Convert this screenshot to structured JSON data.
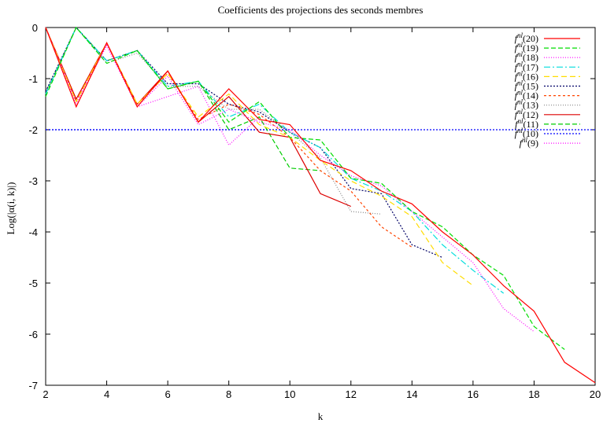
{
  "chart_data": {
    "type": "line",
    "title": "Coefficients des projections des seconds membres",
    "xlabel": "k",
    "ylabel": "Log(|α(i, k)|)",
    "xlim": [
      2,
      20
    ],
    "ylim": [
      -7,
      0
    ],
    "xticks": [
      2,
      4,
      6,
      8,
      10,
      12,
      14,
      16,
      18,
      20
    ],
    "yticks": [
      0,
      -1,
      -2,
      -3,
      -4,
      -5,
      -6,
      -7
    ],
    "grid": false,
    "legend_position": "top-right",
    "series": [
      {
        "name": "f^nl(20)",
        "color": "#ff0000",
        "dash": "solid",
        "x": [
          2,
          3,
          4,
          5,
          6,
          7,
          8,
          9,
          10,
          11,
          12,
          13,
          14,
          15,
          16,
          17,
          18,
          19,
          20
        ],
        "y": [
          0,
          -1.55,
          -0.3,
          -1.55,
          -0.85,
          -1.85,
          -1.2,
          -1.8,
          -1.9,
          -2.6,
          -2.8,
          -3.2,
          -3.45,
          -4.0,
          -4.45,
          -5.05,
          -5.55,
          -6.55,
          -6.95
        ]
      },
      {
        "name": "f^nl(19)",
        "color": "#00dd00",
        "dash": "6,3",
        "x": [
          2,
          3,
          4,
          5,
          6,
          7,
          8,
          9,
          10,
          11,
          12,
          13,
          14,
          15,
          16,
          17,
          18,
          19
        ],
        "y": [
          -1.35,
          0,
          -0.7,
          -0.45,
          -1.2,
          -1.05,
          -1.85,
          -1.45,
          -2.15,
          -2.2,
          -2.95,
          -3.05,
          -3.6,
          -3.9,
          -4.45,
          -4.85,
          -5.85,
          -6.3
        ]
      },
      {
        "name": "f^nl(18)",
        "color": "#ff00ff",
        "dash": "1,2",
        "x": [
          2,
          3,
          4,
          5,
          6,
          7,
          8,
          9,
          10,
          11,
          12,
          13,
          14,
          15,
          16,
          17,
          18
        ],
        "y": [
          0,
          -1.5,
          -0.35,
          -1.55,
          -0.95,
          -1.9,
          -1.6,
          -1.85,
          -2.0,
          -2.5,
          -2.9,
          -3.1,
          -3.6,
          -4.1,
          -4.6,
          -5.5,
          -5.95
        ]
      },
      {
        "name": "f^nl(17)",
        "color": "#00dddd",
        "dash": "8,3,2,3",
        "x": [
          2,
          3,
          4,
          5,
          6,
          7,
          8,
          9,
          10,
          11,
          12,
          13,
          14,
          15,
          16,
          17
        ],
        "y": [
          -1.3,
          0,
          -0.65,
          -0.45,
          -1.15,
          -1.05,
          -1.75,
          -1.5,
          -2.05,
          -2.35,
          -2.95,
          -3.2,
          -3.6,
          -4.25,
          -4.75,
          -5.2
        ]
      },
      {
        "name": "f^nl(16)",
        "color": "#ffdd00",
        "dash": "7,4",
        "x": [
          2,
          3,
          4,
          5,
          6,
          7,
          8,
          9,
          10,
          11,
          12,
          13,
          14,
          15,
          16
        ],
        "y": [
          0,
          -1.45,
          -0.3,
          -1.5,
          -0.9,
          -1.75,
          -1.3,
          -1.9,
          -2.15,
          -2.6,
          -3.0,
          -3.3,
          -3.7,
          -4.6,
          -5.05
        ]
      },
      {
        "name": "f^nl(15)",
        "color": "#000066",
        "dash": "2,2",
        "x": [
          2,
          3,
          4,
          5,
          6,
          7,
          8,
          9,
          10,
          11,
          12,
          13,
          14,
          15
        ],
        "y": [
          -1.25,
          0,
          -0.65,
          -0.45,
          -1.1,
          -1.1,
          -1.5,
          -1.65,
          -2.05,
          -2.35,
          -3.15,
          -3.25,
          -4.25,
          -4.5
        ]
      },
      {
        "name": "f^nl(14)",
        "color": "#ff4400",
        "dash": "3,3",
        "x": [
          2,
          3,
          4,
          5,
          6,
          7,
          8,
          9,
          10,
          11,
          12,
          13,
          14
        ],
        "y": [
          0,
          -1.45,
          -0.3,
          -1.5,
          -0.9,
          -1.8,
          -1.5,
          -1.7,
          -2.15,
          -2.8,
          -3.2,
          -3.9,
          -4.3
        ]
      },
      {
        "name": "f^nl(13)",
        "color": "#888888",
        "dash": "1,2",
        "x": [
          2,
          3,
          4,
          5,
          6,
          7,
          8,
          9,
          10,
          11,
          12,
          13
        ],
        "y": [
          -1.25,
          0,
          -0.7,
          -0.5,
          -1.15,
          -1.15,
          -1.6,
          -1.6,
          -2.05,
          -2.55,
          -3.6,
          -3.65
        ]
      },
      {
        "name": "f^nl(12)",
        "color": "#dd0000",
        "dash": "solid",
        "x": [
          2,
          3,
          4,
          5,
          6,
          7,
          8,
          9,
          10,
          11,
          12
        ],
        "y": [
          0,
          -1.4,
          -0.3,
          -1.5,
          -0.85,
          -1.85,
          -1.35,
          -2.05,
          -2.15,
          -3.25,
          -3.5
        ]
      },
      {
        "name": "f^nl(11)",
        "color": "#00cc00",
        "dash": "6,3",
        "x": [
          2,
          3,
          4,
          5,
          6,
          7,
          8,
          9,
          10,
          11
        ],
        "y": [
          -1.3,
          0,
          -0.65,
          -0.45,
          -1.2,
          -1.05,
          -2.0,
          -1.75,
          -2.75,
          -2.8
        ]
      },
      {
        "name": "f^nl(10)",
        "color": "#0000ff",
        "dash": "2,2",
        "x": [
          2,
          3,
          4,
          5,
          6,
          7,
          8,
          9,
          10
        ],
        "y": [
          -2,
          -2,
          -2,
          -2,
          -2,
          -2,
          -2,
          -2,
          -2
        ]
      },
      {
        "name": "f^nl(9)",
        "color": "#ff00ff",
        "dash": "1,2",
        "x": [
          2,
          3,
          4,
          5,
          6,
          7,
          8,
          9
        ],
        "y": [
          0,
          -1.45,
          -0.35,
          -1.55,
          -1.35,
          -1.15,
          -2.3,
          -1.75
        ]
      }
    ],
    "reference_line": {
      "y": -2,
      "color": "#0000ff",
      "dash": "2,2",
      "from_x": 2,
      "to_x": 20
    }
  }
}
